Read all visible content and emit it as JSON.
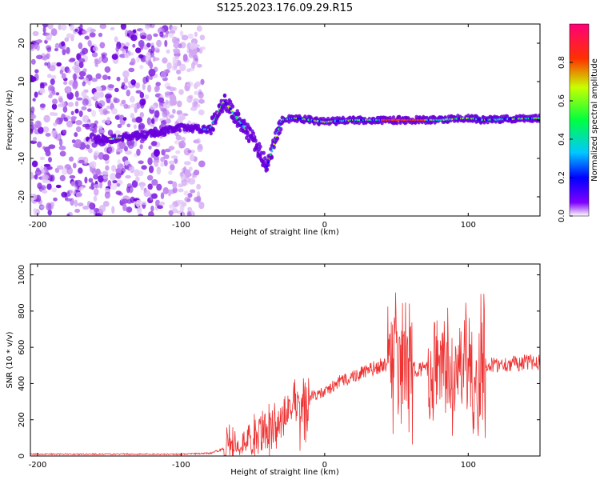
{
  "title": "S125.2023.176.09.29.R15",
  "chart_data": [
    {
      "type": "heatmap",
      "xlabel": "Height of straight line (km)",
      "ylabel": "Frequency (Hz)",
      "xlim": [
        -205,
        150
      ],
      "ylim": [
        -25,
        25
      ],
      "xticks": [
        -200,
        -100,
        0,
        100
      ],
      "yticks": [
        -20,
        -10,
        0,
        10,
        20
      ],
      "colorbar": {
        "label": "Normalized spectral amplitude",
        "range": [
          0,
          1
        ],
        "ticks": [
          "0.0",
          "0.2",
          "0.4",
          "0.6",
          "0.8"
        ],
        "colormap": [
          "#ffffff",
          "#7f00ff",
          "#0000ff",
          "#00ffff",
          "#00ff00",
          "#ffff00",
          "#ff0000",
          "#ff00c8"
        ]
      },
      "ridge": {
        "description_points_x": [
          -150,
          -120,
          -100,
          -80,
          -70,
          -60,
          -50,
          -40,
          -30,
          -20,
          0,
          20,
          40,
          60,
          80,
          100,
          110,
          150
        ],
        "description_points_y": [
          -5,
          -3.5,
          -2,
          -2.5,
          5,
          0,
          -5,
          -12,
          0,
          0.5,
          -0.5,
          0,
          0,
          0,
          0,
          0.5,
          0,
          0.5
        ]
      },
      "grid": false
    },
    {
      "type": "line",
      "xlabel": "Height of straight line (km)",
      "ylabel": "SNR (10 * v/v)",
      "xlim": [
        -205,
        150
      ],
      "ylim": [
        0,
        1060
      ],
      "xticks": [
        -200,
        -100,
        0,
        100
      ],
      "yticks": [
        0,
        200,
        400,
        600,
        800,
        1000
      ],
      "color": "#ee3333",
      "envelope": {
        "x": [
          -205,
          -150,
          -100,
          -80,
          -70,
          -50,
          -30,
          -20,
          -10,
          0,
          10,
          20,
          30,
          40,
          45,
          50,
          60,
          70,
          75,
          80,
          90,
          100,
          110,
          112,
          130,
          150
        ],
        "y": [
          10,
          10,
          10,
          15,
          40,
          100,
          200,
          290,
          330,
          350,
          410,
          440,
          470,
          500,
          510,
          510,
          480,
          480,
          480,
          470,
          480,
          470,
          480,
          500,
          510,
          520
        ]
      },
      "bursts": [
        {
          "x0": -70,
          "x1": -10,
          "amp": 160
        },
        {
          "x0": -18,
          "x1": -12,
          "amp": 330
        },
        {
          "x0": 44,
          "x1": 62,
          "amp": 480
        },
        {
          "x0": 72,
          "x1": 112,
          "amp": 400
        },
        {
          "x0": 104,
          "x1": 112,
          "amp": 560
        }
      ],
      "grid": false
    }
  ]
}
